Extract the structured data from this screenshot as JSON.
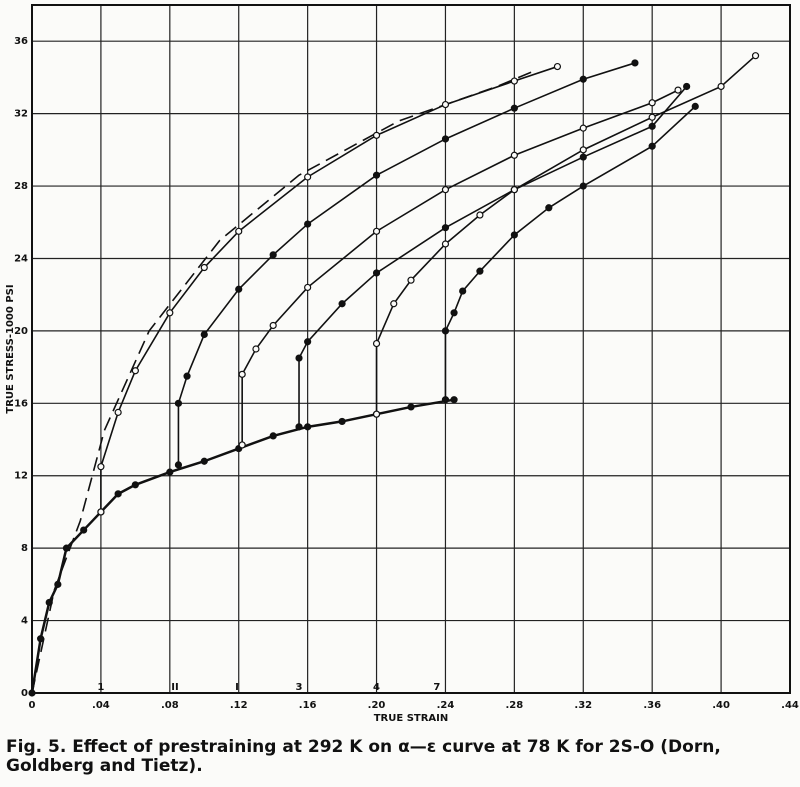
{
  "chart_data": {
    "type": "line",
    "caption": "Fig. 5. Effect of prestraining at 292 K on α—ε curve at 78 K for 2S-O (Dorn, Goldberg and Tietz).",
    "x_label": "TRUE STRAIN",
    "y_label": "TRUE STRESS-1000 PSI",
    "xlim": [
      0,
      0.44
    ],
    "ylim": [
      0,
      38
    ],
    "xticks": [
      0,
      {
        "value": 0.04,
        "label": ".04"
      },
      {
        "value": 0.08,
        "label": ".08"
      },
      {
        "value": 0.12,
        "label": ".12"
      },
      {
        "value": 0.16,
        "label": ".16"
      },
      {
        "value": 0.2,
        "label": ".20"
      },
      {
        "value": 0.24,
        "label": ".24"
      },
      {
        "value": 0.28,
        "label": ".28"
      },
      {
        "value": 0.32,
        "label": ".32"
      },
      {
        "value": 0.36,
        "label": ".36"
      },
      {
        "value": 0.4,
        "label": ".40"
      },
      {
        "value": 0.44,
        "label": ".44"
      }
    ],
    "yticks": [
      0,
      4,
      8,
      12,
      16,
      20,
      24,
      28,
      32,
      36
    ],
    "grid": true,
    "annotations": [
      {
        "text": "1",
        "x": 0.04
      },
      {
        "text": "II",
        "x": 0.083
      },
      {
        "text": "I",
        "x": 0.119
      },
      {
        "text": "3",
        "x": 0.155
      },
      {
        "text": "4",
        "x": 0.2
      },
      {
        "text": "7",
        "x": 0.235
      }
    ],
    "series": [
      {
        "color": "#111111",
        "dash": true,
        "x": [
          0,
          0.013,
          0.028,
          0.042,
          0.068,
          0.109,
          0.155,
          0.213,
          0.27,
          0.29
        ],
        "values": [
          0,
          5.7,
          9.5,
          14.5,
          20,
          25,
          28.6,
          31.6,
          33.5,
          34.3
        ]
      },
      {
        "color": "#111111",
        "x": [
          0,
          0.005,
          0.01,
          0.015,
          0.02,
          0.03,
          0.04,
          0.05,
          0.06,
          0.08,
          0.1,
          0.12,
          0.14,
          0.16,
          0.18,
          0.2,
          0.22,
          0.245
        ],
        "values": [
          0,
          3,
          5,
          6,
          8,
          9,
          10,
          11,
          11.5,
          12.2,
          12.8,
          13.5,
          14.2,
          14.7,
          15,
          15.4,
          15.8,
          16.2
        ]
      },
      {
        "color": "#111111",
        "x": [
          0.04,
          0.04,
          0.05,
          0.06,
          0.08,
          0.1,
          0.12,
          0.16,
          0.2,
          0.24,
          0.28,
          0.305
        ],
        "values": [
          10,
          12.5,
          15.5,
          17.8,
          21,
          23.5,
          25.5,
          28.5,
          30.8,
          32.5,
          33.8,
          34.6
        ]
      },
      {
        "color": "#111111",
        "x": [
          0.085,
          0.085,
          0.09,
          0.1,
          0.12,
          0.14,
          0.16,
          0.2,
          0.24,
          0.28,
          0.32,
          0.35
        ],
        "values": [
          12.6,
          16,
          17.5,
          19.8,
          22.3,
          24.2,
          25.9,
          28.6,
          30.6,
          32.3,
          33.9,
          34.8
        ]
      },
      {
        "color": "#111111",
        "x": [
          0.122,
          0.122,
          0.13,
          0.14,
          0.16,
          0.2,
          0.24,
          0.28,
          0.32,
          0.36,
          0.375
        ],
        "values": [
          13.7,
          17.6,
          19,
          20.3,
          22.4,
          25.5,
          27.8,
          29.7,
          31.2,
          32.6,
          33.3
        ]
      },
      {
        "color": "#111111",
        "x": [
          0.155,
          0.155,
          0.16,
          0.18,
          0.2,
          0.24,
          0.28,
          0.32,
          0.36,
          0.38
        ],
        "values": [
          14.7,
          18.5,
          19.4,
          21.5,
          23.2,
          25.7,
          27.8,
          29.6,
          31.3,
          33.5
        ]
      },
      {
        "color": "#111111",
        "x": [
          0.2,
          0.2,
          0.21,
          0.22,
          0.24,
          0.26,
          0.28,
          0.32,
          0.36,
          0.4,
          0.42
        ],
        "values": [
          15.4,
          19.3,
          21.5,
          22.8,
          24.8,
          26.4,
          27.8,
          30,
          31.8,
          33.5,
          35.2
        ]
      },
      {
        "color": "#111111",
        "x": [
          0.24,
          0.24,
          0.245,
          0.25,
          0.26,
          0.28,
          0.3,
          0.32,
          0.36,
          0.385
        ],
        "values": [
          16.2,
          20,
          21,
          22.2,
          23.3,
          25.3,
          26.8,
          28,
          30.2,
          32.4
        ]
      }
    ]
  }
}
